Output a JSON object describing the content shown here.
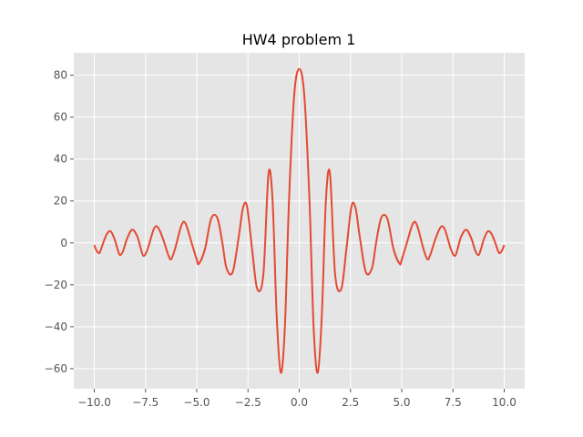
{
  "chart_data": {
    "type": "line",
    "title": "HW4 problem 1",
    "xlabel": "",
    "ylabel": "",
    "xlim": [
      -11.0,
      11.0
    ],
    "ylim": [
      -69.6,
      90.7
    ],
    "xticks": [
      -10.0,
      -7.5,
      -5.0,
      -2.5,
      0.0,
      2.5,
      5.0,
      7.5,
      10.0
    ],
    "xtick_labels": [
      "−10.0",
      "−7.5",
      "−5.0",
      "−2.5",
      "0.0",
      "2.5",
      "5.0",
      "7.5",
      "10.0"
    ],
    "yticks": [
      -60,
      -40,
      -20,
      0,
      20,
      40,
      60,
      80
    ],
    "ytick_labels": [
      "−60",
      "−40",
      "−20",
      "0",
      "20",
      "40",
      "60",
      "80"
    ],
    "grid": true,
    "legend": "none",
    "series": [
      {
        "color": "#e24a33",
        "x": [
          -10.0,
          -9.9,
          -9.75,
          -9.6,
          -9.4,
          -9.2,
          -9.0,
          -8.85,
          -8.75,
          -8.6,
          -8.4,
          -8.15,
          -7.9,
          -7.75,
          -7.6,
          -7.4,
          -7.1,
          -6.9,
          -6.65,
          -6.4,
          -6.25,
          -6.05,
          -5.75,
          -5.55,
          -5.25,
          -5.0,
          -4.9,
          -4.6,
          -4.3,
          -4.0,
          -3.75,
          -3.55,
          -3.25,
          -2.95,
          -2.75,
          -2.55,
          -2.3,
          -2.05,
          -1.75,
          -1.5,
          -1.3,
          -1.1,
          -0.9,
          -0.7,
          -0.5,
          -0.25,
          0.0,
          0.25,
          0.5,
          0.7,
          0.9,
          1.1,
          1.3,
          1.5,
          1.75,
          2.05,
          2.3,
          2.55,
          2.75,
          2.95,
          3.25,
          3.55,
          3.75,
          4.0,
          4.3,
          4.6,
          4.9,
          5.0,
          5.25,
          5.55,
          5.75,
          6.05,
          6.25,
          6.4,
          6.65,
          6.9,
          7.1,
          7.4,
          7.6,
          7.75,
          7.9,
          8.15,
          8.4,
          8.6,
          8.75,
          8.85,
          9.0,
          9.2,
          9.4,
          9.6,
          9.75,
          9.9,
          10.0
        ],
        "y": [
          -1.0,
          -3.5,
          -4.8,
          -1.0,
          4.0,
          5.5,
          1.5,
          -3.5,
          -5.8,
          -4.0,
          2.0,
          6.3,
          3.0,
          -2.0,
          -6.2,
          -3.0,
          6.5,
          7.5,
          2.0,
          -5.5,
          -7.8,
          -2.5,
          8.3,
          9.3,
          0.0,
          -8.0,
          -10.0,
          -3.0,
          11.5,
          12.0,
          0.0,
          -12.0,
          -14.0,
          3.0,
          16.5,
          17.5,
          -3.0,
          -22.0,
          -15.0,
          33.0,
          20.0,
          -35.0,
          -62.0,
          -40.0,
          20.0,
          70.0,
          83.0,
          70.0,
          20.0,
          -40.0,
          -62.0,
          -35.0,
          20.0,
          33.0,
          -15.0,
          -22.0,
          -3.0,
          17.5,
          16.5,
          3.0,
          -14.0,
          -12.0,
          0.0,
          12.0,
          11.5,
          -3.0,
          -10.0,
          -8.0,
          0.0,
          9.3,
          8.3,
          -2.5,
          -7.8,
          -5.5,
          2.0,
          7.5,
          6.5,
          -3.0,
          -6.2,
          -2.0,
          3.0,
          6.3,
          2.0,
          -4.0,
          -5.8,
          -3.5,
          1.5,
          5.5,
          4.0,
          -1.0,
          -4.8,
          -3.5,
          -1.0
        ]
      }
    ]
  }
}
